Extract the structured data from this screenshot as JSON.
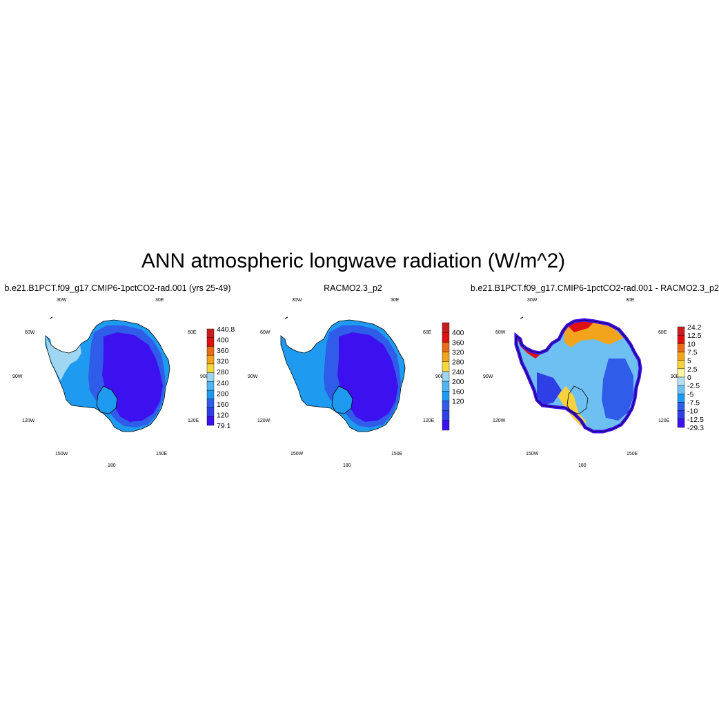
{
  "title": "ANN atmospheric longwave radiation (W/m^2)",
  "colors": {
    "deep": "#3d10f0",
    "mid": "#2f5ce8",
    "light": "#1e9bf0",
    "pale": "#9fd6f2",
    "coast": "#000000"
  },
  "panels": [
    {
      "id": "model",
      "title": "b.e21.B1PCT.f09_g17.CMIP6-1pctCO2-rad.001 (yrs 25-49)",
      "lon_labels": {
        "n30w": "30W",
        "n30e": "30E",
        "w60": "60W",
        "e60": "60E",
        "w90": "90W",
        "e90": "90E",
        "w120": "120W",
        "e120": "120E",
        "s150w": "150W",
        "s150e": "150E",
        "s180": "180"
      },
      "colorbar": {
        "colors": [
          "#3d10f0",
          "#2f3fe6",
          "#2f5ce8",
          "#1e9bf0",
          "#4fb6f2",
          "#9fd6f2",
          "#f4d83c",
          "#f2a51c",
          "#ea6c14",
          "#e01010",
          "#c81e1e"
        ],
        "labels": [
          "440.8",
          "400",
          "360",
          "320",
          "280",
          "240",
          "200",
          "160",
          "120",
          "79.1"
        ]
      }
    },
    {
      "id": "obs",
      "title": "RACMO2.3_p2",
      "lon_labels": {
        "n30w": "30W",
        "n30e": "30E",
        "w60": "60W",
        "e60": "60E",
        "w90": "90W",
        "e90": "90E",
        "w120": "120W",
        "e120": "120E",
        "s150w": "150W",
        "s150e": "150E",
        "s180": "180"
      },
      "colorbar": {
        "colors": [
          "#3d10f0",
          "#2f3fe6",
          "#2f5ce8",
          "#1e9bf0",
          "#4fb6f2",
          "#9fd6f2",
          "#f4d83c",
          "#f2a51c",
          "#ea6c14",
          "#e01010",
          "#c81e1e"
        ],
        "labels": [
          "400",
          "360",
          "320",
          "280",
          "240",
          "200",
          "160",
          "120"
        ]
      }
    },
    {
      "id": "diff",
      "title": "b.e21.B1PCT.f09_g17.CMIP6-1pctCO2-rad.001 - RACMO2.3_p2",
      "lon_labels": {
        "n30w": "30W",
        "n30e": "30E",
        "w60": "60W",
        "e60": "60E",
        "w90": "90W",
        "e90": "90E",
        "w120": "120W",
        "e120": "120E",
        "s150w": "150W",
        "s150e": "150E",
        "s180": "180"
      },
      "colorbar": {
        "colors": [
          "#3d10f0",
          "#2f3fe6",
          "#2f5ce8",
          "#1e9bf0",
          "#6fc0f2",
          "#b4def4",
          "#fff7a0",
          "#f8d23c",
          "#f2a51c",
          "#ea6c14",
          "#e01010",
          "#c81e1e"
        ],
        "labels": [
          "24.2",
          "12.5",
          "10",
          "7.5",
          "5",
          "2.5",
          "0",
          "-2.5",
          "-5",
          "-7.5",
          "-10",
          "-12.5",
          "-29.3"
        ]
      }
    }
  ]
}
